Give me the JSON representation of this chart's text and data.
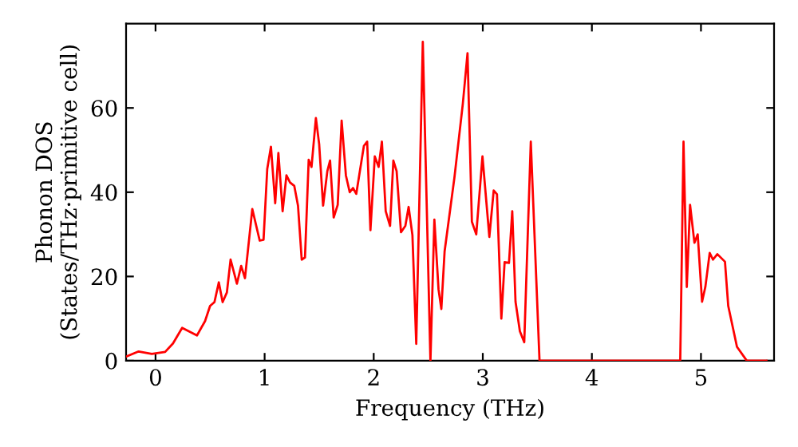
{
  "chart_data": {
    "type": "line",
    "xlabel": "Frequency (THz)",
    "ylabel": "Phonon DOS\n(States/THz·primitive cell)",
    "x": [
      -0.267,
      -0.155,
      -0.034,
      0.088,
      0.16,
      0.244,
      0.38,
      0.454,
      0.5,
      0.54,
      0.58,
      0.615,
      0.654,
      0.688,
      0.746,
      0.785,
      0.82,
      0.887,
      0.955,
      0.99,
      1.024,
      1.058,
      1.097,
      1.126,
      1.165,
      1.2,
      1.233,
      1.272,
      1.306,
      1.34,
      1.37,
      1.404,
      1.43,
      1.47,
      1.5,
      1.536,
      1.575,
      1.6,
      1.633,
      1.67,
      1.706,
      1.745,
      1.78,
      1.81,
      1.84,
      1.91,
      1.94,
      1.97,
      2.01,
      2.045,
      2.075,
      2.11,
      2.15,
      2.18,
      2.21,
      2.25,
      2.29,
      2.32,
      2.355,
      2.39,
      2.45,
      2.52,
      2.556,
      2.594,
      2.62,
      2.65,
      2.74,
      2.817,
      2.86,
      2.9,
      2.94,
      2.997,
      3.06,
      3.1,
      3.13,
      3.17,
      3.2,
      3.24,
      3.27,
      3.3,
      3.34,
      3.38,
      3.44,
      3.52,
      4.81,
      4.84,
      4.87,
      4.9,
      4.94,
      4.97,
      5.01,
      5.04,
      5.08,
      5.11,
      5.15,
      5.22,
      5.25,
      5.33,
      5.42,
      5.6
    ],
    "series": [
      {
        "color": "#ff0000",
        "values": [
          1,
          2.2,
          1.6,
          2.1,
          4.1,
          7.8,
          6,
          9.4,
          13,
          13.9,
          18.6,
          13.9,
          16.2,
          24,
          18.3,
          22.5,
          19.6,
          36,
          28.5,
          28.7,
          45.5,
          50.8,
          37.4,
          49.3,
          35.5,
          44,
          42.3,
          41.5,
          36.8,
          24,
          24.5,
          47.7,
          46,
          57.6,
          51.4,
          36.8,
          45,
          47.5,
          34,
          37,
          57,
          44,
          40,
          41,
          39.6,
          51,
          52,
          31,
          48.5,
          46,
          52,
          35.5,
          32,
          47.5,
          45,
          30.5,
          32,
          36.5,
          29.8,
          4,
          75.7,
          0,
          33.5,
          17,
          12.3,
          26,
          43.5,
          61,
          73,
          33,
          30,
          48.5,
          29.4,
          40.4,
          39.5,
          10,
          23.4,
          23.2,
          35.5,
          14,
          7,
          4.4,
          52,
          0,
          0,
          52,
          17.5,
          37,
          28,
          30,
          14,
          17.5,
          25.6,
          24,
          25.3,
          23.5,
          13,
          3.3,
          0,
          0
        ]
      }
    ],
    "xlim": [
      -0.27,
      5.67
    ],
    "ylim": [
      0,
      80
    ],
    "xticks": [
      0,
      1,
      2,
      3,
      4,
      5
    ],
    "yticks": [
      0,
      20,
      40,
      60
    ],
    "grid": false,
    "legend": false,
    "marker": "none",
    "line_style": "solid"
  }
}
